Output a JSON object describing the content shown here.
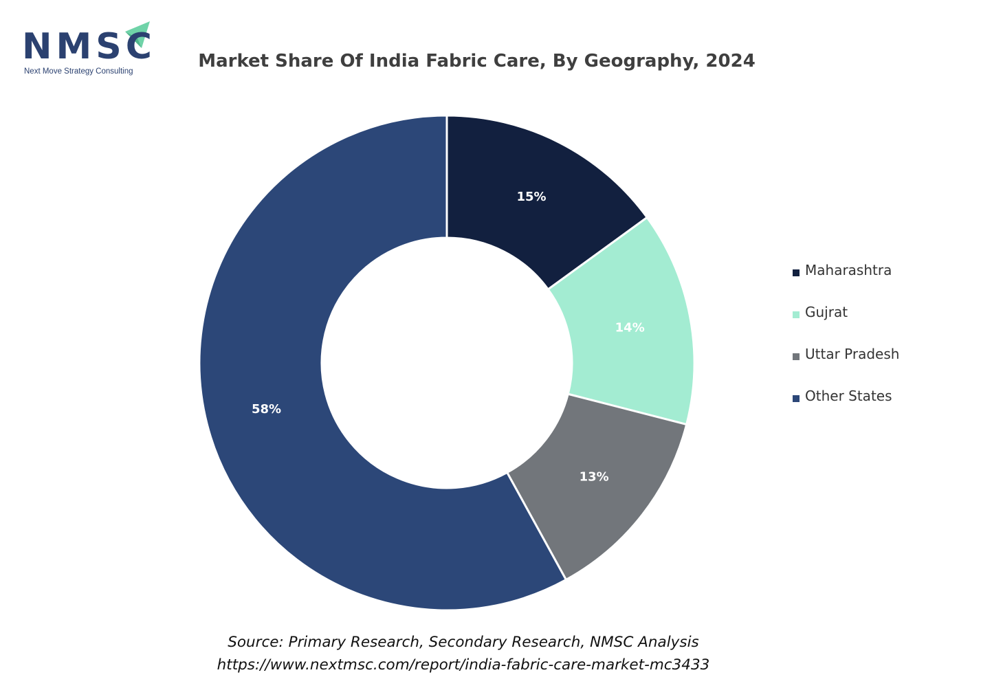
{
  "logo": {
    "name": "NMSC",
    "tagline": "Next Move Strategy Consulting"
  },
  "chart_data": {
    "type": "pie",
    "variant": "donut",
    "title": "Market Share Of India Fabric Care, By Geography, 2024",
    "unit": "%",
    "categories": [
      "Maharashtra",
      "Gujrat",
      "Uttar Pradesh",
      "Other States"
    ],
    "values": [
      15,
      14,
      13,
      58
    ],
    "labels": [
      "15%",
      "14%",
      "13%",
      "58%"
    ],
    "colors": [
      "#12203f",
      "#a3ecd2",
      "#72767b",
      "#2c4778"
    ],
    "label_colors": [
      "#ffffff",
      "#ffffff",
      "#ffffff",
      "#ffffff"
    ],
    "legend_position": "right"
  },
  "footer": {
    "source": "Source: Primary Research, Secondary Research, NMSC Analysis",
    "url": "https://www.nextmsc.com/report/india-fabric-care-market-mc3433"
  }
}
